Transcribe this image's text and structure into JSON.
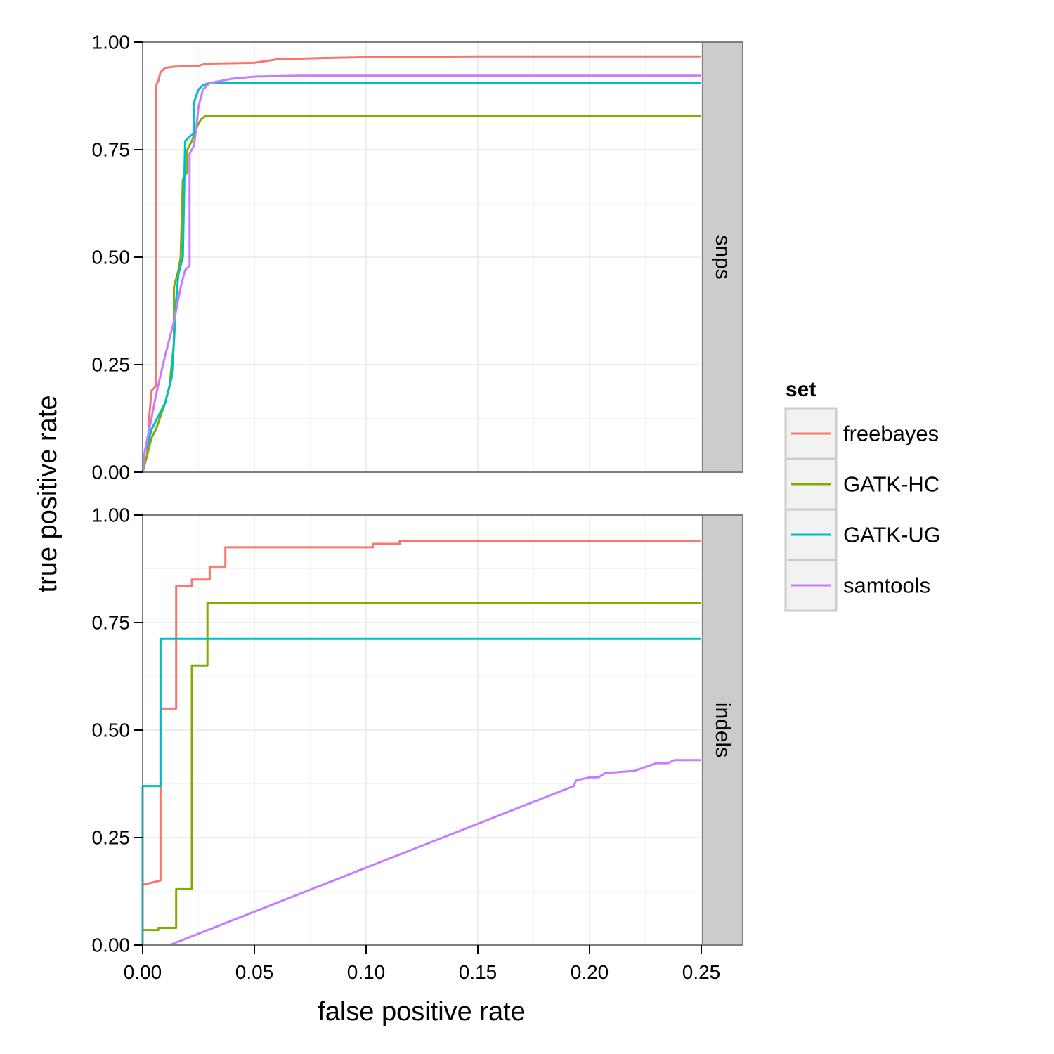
{
  "chart_data": {
    "type": "line",
    "xlabel": "false positive rate",
    "ylabel": "true positive rate",
    "xlim": [
      0,
      0.25
    ],
    "ylim": [
      0,
      1
    ],
    "x_ticks": [
      "0.00",
      "0.05",
      "0.10",
      "0.15",
      "0.20",
      "0.25"
    ],
    "y_ticks": [
      "0.00",
      "0.25",
      "0.50",
      "0.75",
      "1.00"
    ],
    "grid": true,
    "legend": {
      "title": "set",
      "placement": "right",
      "entries": [
        {
          "name": "freebayes",
          "color": "#F8766D"
        },
        {
          "name": "GATK-HC",
          "color": "#7CAE00"
        },
        {
          "name": "GATK-UG",
          "color": "#00BFC4"
        },
        {
          "name": "samtools",
          "color": "#C77CFF"
        }
      ]
    },
    "facets": [
      {
        "label": "snps",
        "series": [
          {
            "name": "freebayes",
            "color": "#F8766D",
            "points": [
              [
                0.0,
                0.0
              ],
              [
                0.001,
                0.02
              ],
              [
                0.002,
                0.04
              ],
              [
                0.003,
                0.13
              ],
              [
                0.004,
                0.19
              ],
              [
                0.006,
                0.2
              ],
              [
                0.006,
                0.9
              ],
              [
                0.007,
                0.91
              ],
              [
                0.008,
                0.93
              ],
              [
                0.01,
                0.94
              ],
              [
                0.014,
                0.943
              ],
              [
                0.025,
                0.945
              ],
              [
                0.028,
                0.95
              ],
              [
                0.05,
                0.952
              ],
              [
                0.06,
                0.96
              ],
              [
                0.08,
                0.963
              ],
              [
                0.1,
                0.965
              ],
              [
                0.15,
                0.967
              ],
              [
                0.25,
                0.967
              ]
            ]
          },
          {
            "name": "GATK-HC",
            "color": "#7CAE00",
            "points": [
              [
                0.0,
                0.0
              ],
              [
                0.002,
                0.04
              ],
              [
                0.004,
                0.08
              ],
              [
                0.006,
                0.1
              ],
              [
                0.008,
                0.13
              ],
              [
                0.01,
                0.16
              ],
              [
                0.012,
                0.2
              ],
              [
                0.014,
                0.3
              ],
              [
                0.014,
                0.43
              ],
              [
                0.016,
                0.47
              ],
              [
                0.017,
                0.5
              ],
              [
                0.018,
                0.68
              ],
              [
                0.02,
                0.7
              ],
              [
                0.02,
                0.75
              ],
              [
                0.022,
                0.77
              ],
              [
                0.024,
                0.8
              ],
              [
                0.026,
                0.82
              ],
              [
                0.028,
                0.828
              ],
              [
                0.25,
                0.828
              ]
            ]
          },
          {
            "name": "GATK-UG",
            "color": "#00BFC4",
            "points": [
              [
                0.0,
                0.0
              ],
              [
                0.001,
                0.05
              ],
              [
                0.002,
                0.06
              ],
              [
                0.004,
                0.1
              ],
              [
                0.006,
                0.12
              ],
              [
                0.008,
                0.14
              ],
              [
                0.01,
                0.16
              ],
              [
                0.012,
                0.2
              ],
              [
                0.013,
                0.22
              ],
              [
                0.014,
                0.3
              ],
              [
                0.015,
                0.4
              ],
              [
                0.016,
                0.46
              ],
              [
                0.018,
                0.5
              ],
              [
                0.019,
                0.77
              ],
              [
                0.021,
                0.78
              ],
              [
                0.023,
                0.79
              ],
              [
                0.023,
                0.86
              ],
              [
                0.025,
                0.89
              ],
              [
                0.027,
                0.9
              ],
              [
                0.03,
                0.905
              ],
              [
                0.25,
                0.905
              ]
            ]
          },
          {
            "name": "samtools",
            "color": "#C77CFF",
            "points": [
              [
                0.0,
                0.0
              ],
              [
                0.001,
                0.05
              ],
              [
                0.003,
                0.1
              ],
              [
                0.006,
                0.18
              ],
              [
                0.01,
                0.27
              ],
              [
                0.014,
                0.35
              ],
              [
                0.017,
                0.43
              ],
              [
                0.019,
                0.47
              ],
              [
                0.021,
                0.48
              ],
              [
                0.021,
                0.74
              ],
              [
                0.023,
                0.76
              ],
              [
                0.024,
                0.8
              ],
              [
                0.025,
                0.85
              ],
              [
                0.027,
                0.89
              ],
              [
                0.03,
                0.905
              ],
              [
                0.035,
                0.91
              ],
              [
                0.04,
                0.915
              ],
              [
                0.05,
                0.92
              ],
              [
                0.07,
                0.922
              ],
              [
                0.25,
                0.922
              ]
            ]
          }
        ]
      },
      {
        "label": "indels",
        "series": [
          {
            "name": "freebayes",
            "color": "#F8766D",
            "points": [
              [
                0.0,
                0.14
              ],
              [
                0.008,
                0.15
              ],
              [
                0.008,
                0.55
              ],
              [
                0.015,
                0.55
              ],
              [
                0.015,
                0.835
              ],
              [
                0.022,
                0.835
              ],
              [
                0.022,
                0.85
              ],
              [
                0.03,
                0.85
              ],
              [
                0.03,
                0.88
              ],
              [
                0.037,
                0.88
              ],
              [
                0.037,
                0.925
              ],
              [
                0.103,
                0.925
              ],
              [
                0.103,
                0.933
              ],
              [
                0.115,
                0.933
              ],
              [
                0.115,
                0.94
              ],
              [
                0.25,
                0.94
              ]
            ]
          },
          {
            "name": "GATK-HC",
            "color": "#7CAE00",
            "points": [
              [
                0.0,
                0.035
              ],
              [
                0.007,
                0.035
              ],
              [
                0.007,
                0.04
              ],
              [
                0.015,
                0.04
              ],
              [
                0.015,
                0.13
              ],
              [
                0.022,
                0.13
              ],
              [
                0.022,
                0.65
              ],
              [
                0.029,
                0.65
              ],
              [
                0.029,
                0.795
              ],
              [
                0.25,
                0.795
              ]
            ]
          },
          {
            "name": "GATK-UG",
            "color": "#00BFC4",
            "points": [
              [
                0.0,
                0.0
              ],
              [
                0.0,
                0.37
              ],
              [
                0.008,
                0.37
              ],
              [
                0.008,
                0.712
              ],
              [
                0.25,
                0.712
              ]
            ]
          },
          {
            "name": "samtools",
            "color": "#C77CFF",
            "points": [
              [
                0.012,
                0.0
              ],
              [
                0.193,
                0.37
              ],
              [
                0.194,
                0.383
              ],
              [
                0.2,
                0.39
              ],
              [
                0.204,
                0.39
              ],
              [
                0.207,
                0.4
              ],
              [
                0.22,
                0.405
              ],
              [
                0.23,
                0.423
              ],
              [
                0.235,
                0.423
              ],
              [
                0.238,
                0.43
              ],
              [
                0.25,
                0.43
              ]
            ]
          }
        ]
      }
    ]
  }
}
